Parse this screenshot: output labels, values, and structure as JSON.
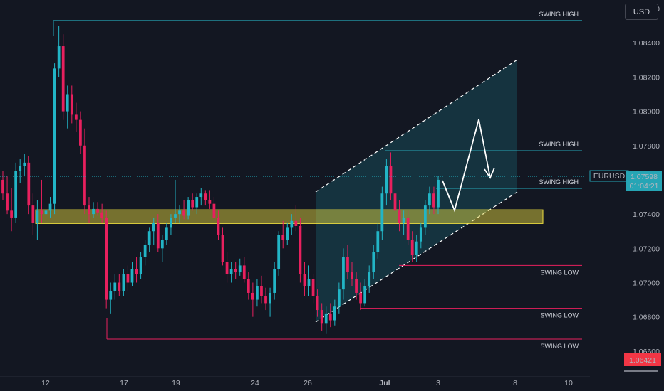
{
  "header": {
    "currency": "USD"
  },
  "symbol": {
    "name": "EURUSD",
    "last_price": "1.07598",
    "countdown": "01:04:21",
    "low_marker": "1.06421",
    "accent": "#26a5b5",
    "low_color": "#f23645"
  },
  "colors": {
    "up": "#22b5c6",
    "down": "#e8205e",
    "zone": "#f0e040",
    "channel": "#1b7d8c"
  },
  "chart_data": {
    "type": "candlestick",
    "symbol": "EURUSD",
    "ylim": [
      1.0645,
      1.0865
    ],
    "y_ticks": [
      "1.08600",
      "1.08400",
      "1.08200",
      "1.08000",
      "1.07800",
      "1.07600",
      "1.07400",
      "1.07200",
      "1.07000",
      "1.06800",
      "1.06600"
    ],
    "x_ticks": [
      "12",
      "17",
      "19",
      "24",
      "26",
      "Jul",
      "3",
      "8",
      "10"
    ],
    "candles": [
      [
        1.076,
        1.0765,
        1.0748,
        1.0752
      ],
      [
        1.0752,
        1.0762,
        1.074,
        1.0742
      ],
      [
        1.0742,
        1.0755,
        1.073,
        1.0738
      ],
      [
        1.0738,
        1.077,
        1.0735,
        1.0765
      ],
      [
        1.0765,
        1.0772,
        1.0758,
        1.0768
      ],
      [
        1.0768,
        1.0775,
        1.0762,
        1.077
      ],
      [
        1.077,
        1.0774,
        1.074,
        1.0745
      ],
      [
        1.0745,
        1.0752,
        1.0728,
        1.0735
      ],
      [
        1.0735,
        1.0748,
        1.0725,
        1.0742
      ],
      [
        1.0742,
        1.076,
        1.0735,
        1.074
      ],
      [
        1.074,
        1.0745,
        1.0735,
        1.0742
      ],
      [
        1.0742,
        1.075,
        1.0738,
        1.0746
      ],
      [
        1.0746,
        1.0828,
        1.074,
        1.0825
      ],
      [
        1.0825,
        1.085,
        1.082,
        1.0838
      ],
      [
        1.0838,
        1.0845,
        1.0795,
        1.08
      ],
      [
        1.08,
        1.0815,
        1.079,
        1.081
      ],
      [
        1.081,
        1.0815,
        1.0793,
        1.0798
      ],
      [
        1.0798,
        1.0805,
        1.0788,
        1.0795
      ],
      [
        1.0795,
        1.08,
        1.0775,
        1.078
      ],
      [
        1.078,
        1.079,
        1.074,
        1.0745
      ],
      [
        1.0745,
        1.075,
        1.0735,
        1.074
      ],
      [
        1.074,
        1.0747,
        1.0738,
        1.0743
      ],
      [
        1.0743,
        1.0747,
        1.0739,
        1.0741
      ],
      [
        1.0741,
        1.0746,
        1.0735,
        1.0738
      ],
      [
        1.0738,
        1.0742,
        1.0685,
        1.069
      ],
      [
        1.069,
        1.07,
        1.0682,
        1.0695
      ],
      [
        1.0695,
        1.0705,
        1.069,
        1.07
      ],
      [
        1.07,
        1.0705,
        1.0692,
        1.0695
      ],
      [
        1.0695,
        1.0708,
        1.0692,
        1.0705
      ],
      [
        1.0705,
        1.071,
        1.0695,
        1.07
      ],
      [
        1.07,
        1.0712,
        1.0698,
        1.0708
      ],
      [
        1.0708,
        1.0715,
        1.07,
        1.0705
      ],
      [
        1.0705,
        1.0718,
        1.0702,
        1.0715
      ],
      [
        1.0715,
        1.0725,
        1.071,
        1.0722
      ],
      [
        1.0722,
        1.0732,
        1.0718,
        1.073
      ],
      [
        1.073,
        1.0738,
        1.0722,
        1.0735
      ],
      [
        1.0735,
        1.074,
        1.0718,
        1.072
      ],
      [
        1.072,
        1.0728,
        1.0712,
        1.0725
      ],
      [
        1.0725,
        1.0735,
        1.0722,
        1.0732
      ],
      [
        1.0732,
        1.074,
        1.0728,
        1.0738
      ],
      [
        1.0738,
        1.076,
        1.0735,
        1.074
      ],
      [
        1.074,
        1.0745,
        1.0735,
        1.0742
      ],
      [
        1.0742,
        1.0748,
        1.0737,
        1.0739
      ],
      [
        1.0739,
        1.075,
        1.0737,
        1.0748
      ],
      [
        1.0748,
        1.0752,
        1.0742,
        1.0744
      ],
      [
        1.0744,
        1.0752,
        1.074,
        1.075
      ],
      [
        1.075,
        1.0755,
        1.0745,
        1.0752
      ],
      [
        1.0752,
        1.0754,
        1.0745,
        1.0748
      ],
      [
        1.0748,
        1.0754,
        1.0743,
        1.0746
      ],
      [
        1.0746,
        1.075,
        1.0736,
        1.0738
      ],
      [
        1.0738,
        1.0742,
        1.0725,
        1.0728
      ],
      [
        1.0728,
        1.0732,
        1.071,
        1.0712
      ],
      [
        1.0712,
        1.0718,
        1.07,
        1.0705
      ],
      [
        1.0705,
        1.0712,
        1.07,
        1.0708
      ],
      [
        1.0708,
        1.0712,
        1.0702,
        1.0706
      ],
      [
        1.0706,
        1.0714,
        1.0704,
        1.071
      ],
      [
        1.071,
        1.0715,
        1.07,
        1.0702
      ],
      [
        1.0702,
        1.0706,
        1.069,
        1.0694
      ],
      [
        1.0694,
        1.07,
        1.068,
        1.069
      ],
      [
        1.069,
        1.0702,
        1.0686,
        1.0698
      ],
      [
        1.0698,
        1.0704,
        1.0688,
        1.0692
      ],
      [
        1.0692,
        1.0697,
        1.0684,
        1.0688
      ],
      [
        1.0688,
        1.0697,
        1.068,
        1.0694
      ],
      [
        1.0694,
        1.0712,
        1.069,
        1.0708
      ],
      [
        1.0708,
        1.073,
        1.0704,
        1.0728
      ],
      [
        1.0728,
        1.0736,
        1.072,
        1.0725
      ],
      [
        1.0725,
        1.0735,
        1.0722,
        1.0732
      ],
      [
        1.0732,
        1.074,
        1.0728,
        1.0736
      ],
      [
        1.0736,
        1.0745,
        1.073,
        1.0733
      ],
      [
        1.0733,
        1.0738,
        1.07,
        1.0705
      ],
      [
        1.0705,
        1.0712,
        1.0692,
        1.0698
      ],
      [
        1.0698,
        1.071,
        1.0692,
        1.0702
      ],
      [
        1.0702,
        1.0705,
        1.0688,
        1.0692
      ],
      [
        1.0692,
        1.0696,
        1.068,
        1.0684
      ],
      [
        1.0684,
        1.0688,
        1.0672,
        1.0676
      ],
      [
        1.0676,
        1.0686,
        1.067,
        1.0682
      ],
      [
        1.0682,
        1.0688,
        1.0674,
        1.0678
      ],
      [
        1.0678,
        1.069,
        1.0675,
        1.0686
      ],
      [
        1.0686,
        1.07,
        1.0682,
        1.0696
      ],
      [
        1.0696,
        1.072,
        1.069,
        1.0715
      ],
      [
        1.0715,
        1.0722,
        1.0702,
        1.0706
      ],
      [
        1.0706,
        1.0712,
        1.0698,
        1.0702
      ],
      [
        1.0702,
        1.0706,
        1.069,
        1.0694
      ],
      [
        1.0694,
        1.07,
        1.0684,
        1.0688
      ],
      [
        1.0688,
        1.0702,
        1.0686,
        1.0698
      ],
      [
        1.0698,
        1.071,
        1.0694,
        1.0706
      ],
      [
        1.0706,
        1.0722,
        1.0702,
        1.0718
      ],
      [
        1.0718,
        1.0735,
        1.0714,
        1.073
      ],
      [
        1.073,
        1.0756,
        1.0725,
        1.0752
      ],
      [
        1.0752,
        1.0772,
        1.0745,
        1.0768
      ],
      [
        1.0768,
        1.0776,
        1.0748,
        1.0752
      ],
      [
        1.0752,
        1.0758,
        1.0738,
        1.0742
      ],
      [
        1.0742,
        1.0748,
        1.073,
        1.0735
      ],
      [
        1.0735,
        1.0742,
        1.0728,
        1.0738
      ],
      [
        1.0738,
        1.0742,
        1.0722,
        1.0725
      ],
      [
        1.0725,
        1.073,
        1.0712,
        1.0716
      ],
      [
        1.0716,
        1.0728,
        1.0712,
        1.0724
      ],
      [
        1.0724,
        1.0735,
        1.072,
        1.0732
      ],
      [
        1.0732,
        1.0748,
        1.0728,
        1.0745
      ],
      [
        1.0745,
        1.0756,
        1.074,
        1.0752
      ],
      [
        1.0752,
        1.0756,
        1.074,
        1.0744
      ],
      [
        1.0744,
        1.0762,
        1.074,
        1.076
      ]
    ],
    "levels": [
      {
        "label": "SWING HIGH",
        "price": 1.0853,
        "type": "high"
      },
      {
        "label": "SWING HIGH",
        "price": 1.0777,
        "type": "high"
      },
      {
        "label": "SWING HIGH",
        "price": 1.0755,
        "type": "high"
      },
      {
        "label": "SWING LOW",
        "price": 1.071,
        "type": "low"
      },
      {
        "label": "SWING LOW",
        "price": 1.0685,
        "type": "low"
      },
      {
        "label": "SWING LOW",
        "price": 1.0667,
        "type": "low"
      }
    ],
    "zone": [
      1.07425,
      1.07345
    ]
  }
}
